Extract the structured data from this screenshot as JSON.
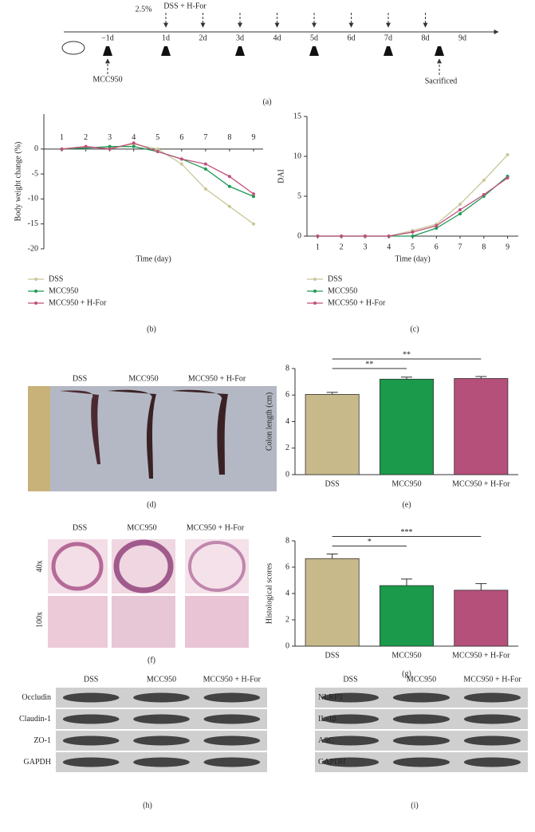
{
  "timeline": {
    "dose": "2.5%",
    "treatment": "DSS + H-For",
    "days": [
      "−1d",
      "1d",
      "2d",
      "3d",
      "4d",
      "5d",
      "6d",
      "7d",
      "8d",
      "9d"
    ],
    "start": "MCC950",
    "end": "Sacrificed",
    "caption": "(a)"
  },
  "chart_data": [
    {
      "type": "line",
      "caption": "(b)",
      "x_label": "Time (day)",
      "y_label": "Body weight change (%)",
      "x": [
        1,
        2,
        3,
        4,
        5,
        6,
        7,
        8,
        9
      ],
      "xlim": [
        0.25,
        9.4
      ],
      "xticks": [
        1,
        2,
        3,
        4,
        5,
        6,
        7,
        8,
        9
      ],
      "ylim": [
        -20,
        7
      ],
      "yticks": [
        -20,
        -15,
        -10,
        -5,
        0
      ],
      "series": [
        {
          "name": "DSS",
          "color": "#c9c79a",
          "values": [
            0,
            0.3,
            0.2,
            1,
            0,
            -3,
            -8,
            -11.5,
            -15
          ]
        },
        {
          "name": "MCC950",
          "color": "#1f9a55",
          "values": [
            0,
            0.2,
            0.5,
            0.5,
            -0.5,
            -2,
            -4,
            -7.5,
            -9.5
          ]
        },
        {
          "name": "MCC950 + H-For",
          "color": "#c0507a",
          "values": [
            0,
            0.5,
            0,
            1.2,
            -0.5,
            -2,
            -3,
            -5.5,
            -9
          ]
        }
      ]
    },
    {
      "type": "line",
      "caption": "(c)",
      "x_label": "Time (day)",
      "y_label": "DAI",
      "x": [
        1,
        2,
        3,
        4,
        5,
        6,
        7,
        8,
        9
      ],
      "xlim": [
        0.55,
        9.45
      ],
      "xticks": [
        1,
        2,
        3,
        4,
        5,
        6,
        7,
        8,
        9
      ],
      "ylim": [
        0,
        15
      ],
      "yticks": [
        0,
        5,
        10,
        15
      ],
      "series": [
        {
          "name": "DSS",
          "color": "#c9c79a",
          "values": [
            0,
            0,
            0,
            0,
            0.7,
            1.5,
            4,
            7,
            10.2
          ]
        },
        {
          "name": "MCC950",
          "color": "#1f9a55",
          "values": [
            0,
            0,
            0,
            0,
            0,
            1,
            2.8,
            5,
            7.5
          ]
        },
        {
          "name": "MCC950 + H-For",
          "color": "#c0507a",
          "values": [
            0,
            0,
            0,
            0,
            0.5,
            1.3,
            3.3,
            5.2,
            7.3
          ]
        }
      ]
    },
    {
      "type": "bar",
      "caption": "(e)",
      "y_label": "Colon length (cm)",
      "categories": [
        "DSS",
        "MCC950",
        "MCC950 + H-For"
      ],
      "values": [
        6.05,
        7.2,
        7.25
      ],
      "errors": [
        0.15,
        0.15,
        0.15
      ],
      "colors": [
        "#c8b98a",
        "#1a9a4a",
        "#b5507a"
      ],
      "ylim": [
        0,
        8
      ],
      "yticks": [
        0,
        2,
        4,
        6,
        8
      ],
      "annotations": [
        "**",
        "**"
      ]
    },
    {
      "type": "bar",
      "caption": "(g)",
      "y_label": "Histological scores",
      "categories": [
        "DSS",
        "MCC950",
        "MCC950 + H-For"
      ],
      "values": [
        6.65,
        4.6,
        4.25
      ],
      "errors": [
        0.35,
        0.5,
        0.5
      ],
      "colors": [
        "#c8b98a",
        "#1a9a4a",
        "#b5507a"
      ],
      "ylim": [
        0,
        8
      ],
      "yticks": [
        0,
        2,
        4,
        6,
        8
      ],
      "annotations": [
        "*",
        "***"
      ]
    }
  ],
  "photo_d": {
    "groups": [
      "DSS",
      "MCC950",
      "MCC950 + H-For"
    ],
    "caption": "(d)"
  },
  "histology": {
    "groups": [
      "DSS",
      "MCC950",
      "MCC950 + H-For"
    ],
    "magnifications": [
      "40x",
      "100x"
    ],
    "caption": "(f)"
  },
  "blot_h": {
    "groups": [
      "DSS",
      "MCC950",
      "MCC950 + H-For"
    ],
    "proteins": [
      "Occludin",
      "Claudin-1",
      "ZO-1",
      "GAPDH"
    ],
    "caption": "(h)"
  },
  "blot_i": {
    "groups": [
      "DSS",
      "MCC950",
      "MCC950 + H-For"
    ],
    "proteins": [
      "NLRP3",
      "IL-1β",
      "ASC",
      "GAPDH"
    ],
    "caption": "(i)"
  }
}
